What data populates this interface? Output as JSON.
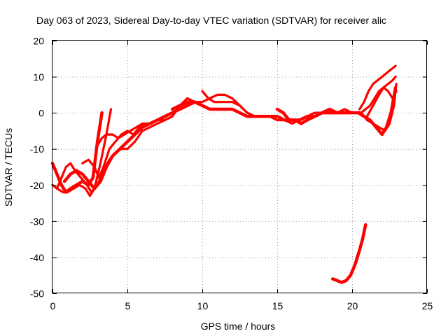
{
  "chart_data": {
    "type": "line",
    "title": "Day 063 of 2023, Sidereal Day-to-day VTEC variation (SDTVAR) for receiver alic",
    "xlabel": "GPS time / hours",
    "ylabel": "SDTVAR / TECUs",
    "xlim": [
      0,
      25
    ],
    "ylim": [
      -50,
      20
    ],
    "xticks": [
      0,
      5,
      10,
      15,
      20,
      25
    ],
    "yticks": [
      -50,
      -40,
      -30,
      -20,
      -10,
      0,
      10,
      20
    ],
    "grid": true,
    "legend": "none",
    "color": "#ff0000",
    "series": [
      {
        "name": "trace-1",
        "x": [
          0.0,
          0.3,
          0.6,
          0.9,
          1.2,
          1.6,
          2.0,
          2.4,
          2.7,
          3.0,
          3.3
        ],
        "y": [
          -14,
          -17,
          -20,
          -22,
          -21,
          -20,
          -19,
          -20,
          -18,
          -8,
          0
        ]
      },
      {
        "name": "trace-2",
        "x": [
          0.0,
          0.3,
          0.7,
          1.0,
          1.4,
          1.8,
          2.2,
          2.5,
          2.8,
          3.2,
          3.6,
          3.9
        ],
        "y": [
          -20,
          -21,
          -22,
          -22,
          -21,
          -20,
          -21,
          -23,
          -21,
          -14,
          -6,
          1
        ]
      },
      {
        "name": "trace-3",
        "x": [
          0.3,
          0.6,
          0.9,
          1.2,
          1.5,
          1.9,
          2.3,
          2.6,
          3.0,
          3.4,
          3.8,
          4.2,
          4.6,
          5.0,
          5.5,
          6.0,
          6.5,
          7.0,
          7.5,
          8.0,
          8.5,
          9.0
        ],
        "y": [
          -21,
          -18,
          -15,
          -14,
          -16,
          -18,
          -20,
          -22,
          -20,
          -16,
          -13,
          -11,
          -10,
          -10,
          -8,
          -5,
          -4,
          -3,
          -2,
          -1,
          2,
          4
        ]
      },
      {
        "name": "trace-4",
        "x": [
          0.8,
          1.2,
          1.6,
          2.0,
          2.4,
          2.8,
          3.2,
          3.6,
          4.0,
          4.5,
          5.0,
          5.5,
          6.0,
          6.5,
          7.0,
          7.5,
          8.0,
          8.5,
          9.0,
          9.5
        ],
        "y": [
          -19,
          -17,
          -16,
          -17,
          -19,
          -21,
          -19,
          -15,
          -12,
          -10,
          -8,
          -6,
          -4,
          -3,
          -2,
          -1,
          0,
          1,
          2,
          3
        ]
      },
      {
        "name": "trace-5",
        "x": [
          2.0,
          2.4,
          2.8,
          3.1,
          3.4,
          3.8,
          4.2,
          4.6,
          5.0,
          5.4,
          5.8,
          6.2,
          6.6,
          7.0,
          7.5,
          8.0
        ],
        "y": [
          -14,
          -13,
          -15,
          -18,
          -15,
          -10,
          -8,
          -6,
          -5,
          -6,
          -4,
          -3,
          -3,
          -2,
          -2,
          -1
        ]
      },
      {
        "name": "trace-6",
        "x": [
          3.0,
          3.3,
          3.6,
          4.0,
          4.4,
          4.8,
          5.2,
          5.6,
          6.0,
          6.5,
          7.0
        ],
        "y": [
          -9,
          -7,
          -6,
          -6,
          -7,
          -6,
          -5,
          -4,
          -3,
          -3,
          -2
        ]
      },
      {
        "name": "trace-7",
        "x": [
          8.0,
          8.5,
          9.0,
          9.5,
          10.0,
          10.5,
          11.0,
          11.5,
          12.0,
          12.5,
          13.0,
          13.5,
          14.0,
          14.5,
          15.0,
          15.5,
          16.0,
          16.5,
          17.0,
          17.5,
          18.0,
          18.5,
          19.0,
          19.5,
          20.0,
          20.5
        ],
        "y": [
          1,
          2,
          3,
          3,
          2,
          1,
          1,
          1,
          1,
          0,
          -1,
          -1,
          -1,
          -1,
          -1,
          -2,
          -2,
          -2,
          -1,
          -1,
          0,
          0,
          0,
          0,
          0,
          0
        ]
      },
      {
        "name": "trace-8",
        "x": [
          9.0,
          9.5,
          10.0,
          10.5,
          11.0,
          11.5,
          12.0,
          12.5,
          13.0,
          13.5,
          14.0,
          14.5,
          15.0,
          15.5,
          16.0,
          16.5,
          17.0,
          17.5,
          18.0,
          18.5,
          19.0,
          19.5,
          20.0,
          20.5
        ],
        "y": [
          4,
          3,
          3,
          4,
          5,
          5,
          4,
          2,
          0,
          -1,
          -1,
          -1,
          -2,
          -2,
          -2,
          -2,
          -1,
          0,
          0,
          1,
          0,
          0,
          0,
          0
        ]
      },
      {
        "name": "trace-9",
        "x": [
          10.0,
          10.4,
          10.8,
          11.2,
          11.6,
          12.0,
          12.5,
          13.0,
          13.5,
          14.0,
          14.5,
          15.0,
          15.5,
          16.0,
          16.5,
          17.0,
          17.5,
          18.0,
          18.5,
          19.0,
          19.5,
          20.0,
          20.5
        ],
        "y": [
          6,
          4,
          3,
          3,
          3,
          3,
          2,
          0,
          -1,
          -1,
          -1,
          -2,
          -2,
          -3,
          -2,
          -1,
          -1,
          0,
          0,
          0,
          1,
          0,
          0
        ]
      },
      {
        "name": "trace-10",
        "x": [
          15.0,
          15.4,
          15.8,
          16.2,
          16.6,
          17.0,
          17.5,
          18.0,
          18.5,
          19.0
        ],
        "y": [
          1,
          0,
          -2,
          -2,
          -3,
          -2,
          -1,
          0,
          1,
          0
        ]
      },
      {
        "name": "trace-11",
        "x": [
          20.5,
          20.8,
          21.1,
          21.4,
          21.7,
          22.0,
          22.3,
          22.6,
          22.9
        ],
        "y": [
          1,
          3,
          6,
          8,
          9,
          10,
          11,
          12,
          13
        ]
      },
      {
        "name": "trace-12",
        "x": [
          20.6,
          20.9,
          21.2,
          21.5,
          21.8,
          22.1,
          22.4,
          22.7,
          22.9
        ],
        "y": [
          0,
          1,
          2,
          4,
          6,
          7,
          8,
          9,
          10
        ]
      },
      {
        "name": "trace-13",
        "x": [
          20.4,
          20.8,
          21.2,
          21.6,
          22.0,
          22.3,
          22.6,
          22.9
        ],
        "y": [
          0,
          -1,
          -2,
          -4,
          -6,
          -4,
          0,
          7
        ]
      },
      {
        "name": "trace-14",
        "x": [
          20.6,
          21.0,
          21.4,
          21.8,
          22.2,
          22.5,
          22.8,
          22.95
        ],
        "y": [
          0,
          -2,
          -3,
          -4,
          -5,
          -3,
          2,
          8
        ]
      },
      {
        "name": "trace-15",
        "x": [
          21.0,
          21.4,
          21.8,
          22.1,
          22.4,
          22.7,
          22.95
        ],
        "y": [
          -1,
          2,
          5,
          7,
          6,
          4,
          6
        ]
      },
      {
        "name": "trace-16",
        "x": [
          18.7,
          19.0,
          19.3,
          19.6,
          19.9,
          20.2,
          20.5,
          20.7,
          20.9
        ],
        "y": [
          -46,
          -46.5,
          -47,
          -46.5,
          -45,
          -42,
          -38,
          -35,
          -31
        ]
      }
    ]
  }
}
